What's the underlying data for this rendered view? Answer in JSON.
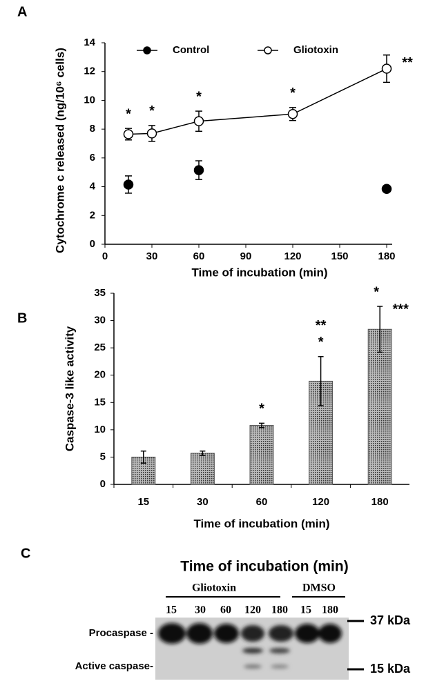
{
  "chart_data": [
    {
      "type": "line",
      "panel_label": "A",
      "x_label": "Time of incubation (min)",
      "y_label": "Cytochrome c released (ng/10⁶ cells)",
      "xlim": [
        0,
        180
      ],
      "xticks": [
        0,
        30,
        60,
        90,
        120,
        150,
        180
      ],
      "ylim": [
        0,
        14
      ],
      "yticks": [
        0,
        2,
        4,
        6,
        8,
        10,
        12,
        14
      ],
      "series": [
        {
          "name": "Control",
          "color": "#000000",
          "marker_fill": "#000000",
          "connected": false,
          "x": [
            15,
            60,
            180
          ],
          "values": [
            4.15,
            5.15,
            3.85
          ],
          "errors": [
            0.6,
            0.65,
            0.15
          ]
        },
        {
          "name": "Gliotoxin",
          "color": "#000000",
          "marker_fill": "#ffffff",
          "connected": true,
          "x": [
            15,
            30,
            60,
            120,
            180
          ],
          "values": [
            7.65,
            7.7,
            8.55,
            9.05,
            12.2
          ],
          "errors": [
            0.4,
            0.55,
            0.7,
            0.45,
            0.95
          ],
          "significance": [
            "*",
            "*",
            "*",
            "*",
            "**"
          ]
        }
      ]
    },
    {
      "type": "bar",
      "panel_label": "B",
      "x_label": "Time of incubation (min)",
      "y_label": "Caspase-3 like activity",
      "categories": [
        "15",
        "30",
        "60",
        "120",
        "180"
      ],
      "values": [
        5,
        5.7,
        10.8,
        18.9,
        28.4
      ],
      "errors": [
        1.1,
        0.4,
        0.4,
        4.5,
        4.2
      ],
      "significance": [
        null,
        null,
        [
          "*"
        ],
        [
          "**",
          "*"
        ],
        [
          "*",
          "***"
        ]
      ],
      "color": "#555555",
      "ylim": [
        0,
        35
      ],
      "yticks": [
        0,
        5,
        10,
        15,
        20,
        25,
        30,
        35
      ]
    }
  ],
  "blot": {
    "panel_label": "C",
    "title": "Time of incubation (min)",
    "groups": [
      "Gliotoxin",
      "DMSO"
    ],
    "lanes": [
      "15",
      "30",
      "60",
      "120",
      "180",
      "15",
      "180"
    ],
    "bands": [
      "Procaspase -",
      "Active caspase-"
    ],
    "markers": [
      "37 kDa",
      "15 kDa"
    ]
  }
}
